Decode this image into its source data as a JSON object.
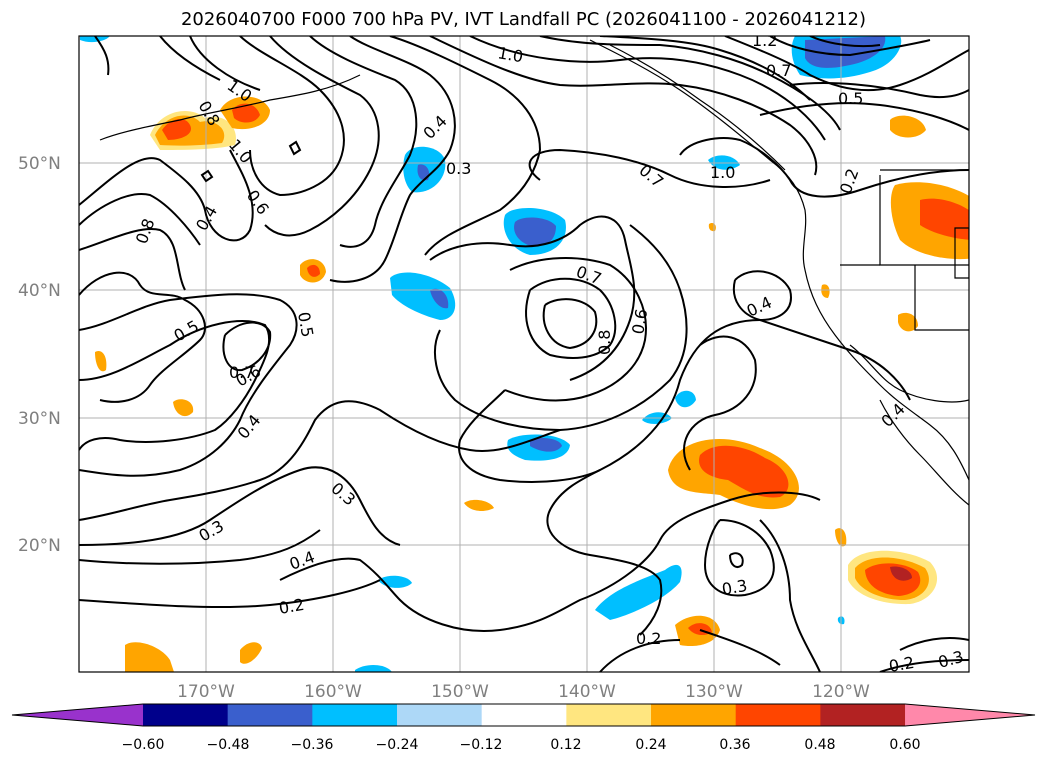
{
  "title": "2026040700 F000 700 hPa PV, IVT Landfall PC (2026041100 - 2026041212)",
  "lat_labels": [
    "50°N",
    "40°N",
    "30°N",
    "20°N"
  ],
  "lon_labels": [
    "170°W",
    "160°W",
    "150°W",
    "140°W",
    "130°W",
    "120°W"
  ],
  "contour_labels": [
    "1.0",
    "0.8",
    "1.0",
    "1.0",
    "1.2",
    "0.7",
    "0.5",
    "0.4",
    "0.3",
    "0.2",
    "0.7",
    "1.0",
    "0.8",
    "0.6",
    "0.4",
    "0.4",
    "0.7",
    "0.6",
    "0.8",
    "0.5",
    "0.5",
    "0.7",
    "0.6",
    "0.4",
    "0.4",
    "0.3",
    "0.3",
    "0.4",
    "0.2",
    "0.3",
    "0.2",
    "0.2",
    "0.3"
  ],
  "colorbar": {
    "ticks": [
      "−0.60",
      "−0.48",
      "−0.36",
      "−0.24",
      "−0.12",
      "0.12",
      "0.24",
      "0.36",
      "0.48",
      "0.60"
    ],
    "colors": [
      "#9932cc",
      "#00008b",
      "#3a5fcd",
      "#00bfff",
      "#add8f7",
      "#ffffff",
      "#ffe680",
      "#ffa500",
      "#ff4500",
      "#b22222",
      "#ff88aa"
    ]
  }
}
